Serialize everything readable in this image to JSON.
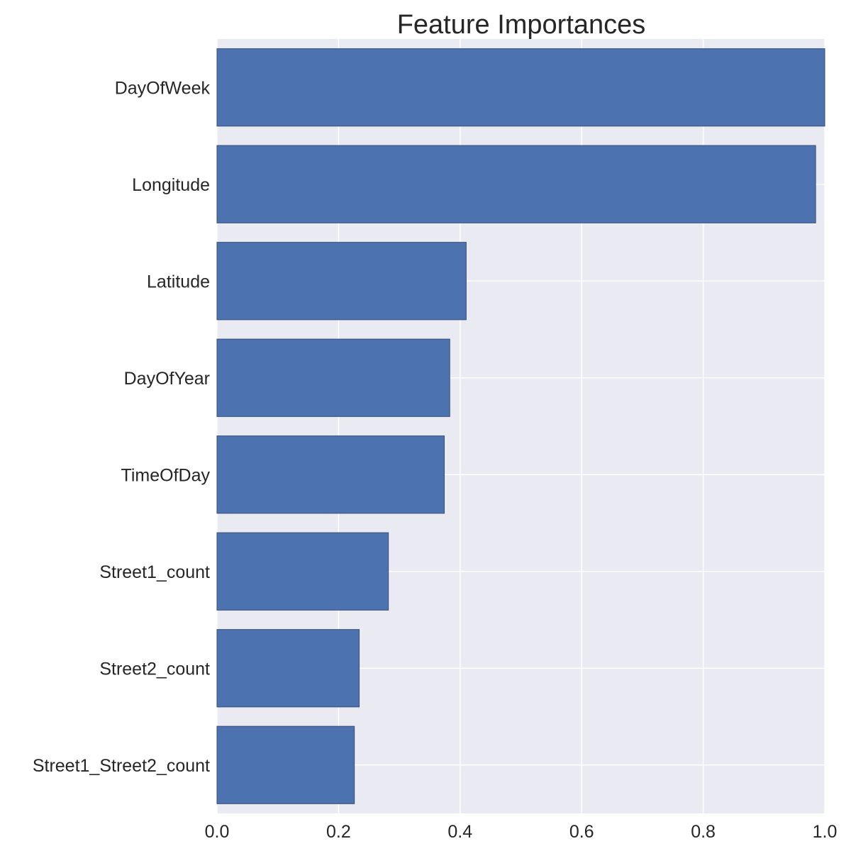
{
  "chart_data": {
    "type": "bar",
    "orientation": "horizontal",
    "title": "Feature Importances",
    "xlabel": "",
    "ylabel": "",
    "categories": [
      "DayOfWeek",
      "Longitude",
      "Latitude",
      "DayOfYear",
      "TimeOfDay",
      "Street1_count",
      "Street2_count",
      "Street1_Street2_count"
    ],
    "values": [
      1.0,
      0.985,
      0.41,
      0.383,
      0.374,
      0.282,
      0.234,
      0.226
    ],
    "xlim": [
      0.0,
      1.0
    ],
    "x_ticks": [
      "0.0",
      "0.2",
      "0.4",
      "0.6",
      "0.8",
      "1.0"
    ],
    "grid": true,
    "legend": "none",
    "colors": {
      "bar_fill": "#4c72b0",
      "bar_edge": "#3b4f7a",
      "plot_background": "#eaeaf2",
      "grid": "#ffffff",
      "text": "#262626"
    }
  }
}
